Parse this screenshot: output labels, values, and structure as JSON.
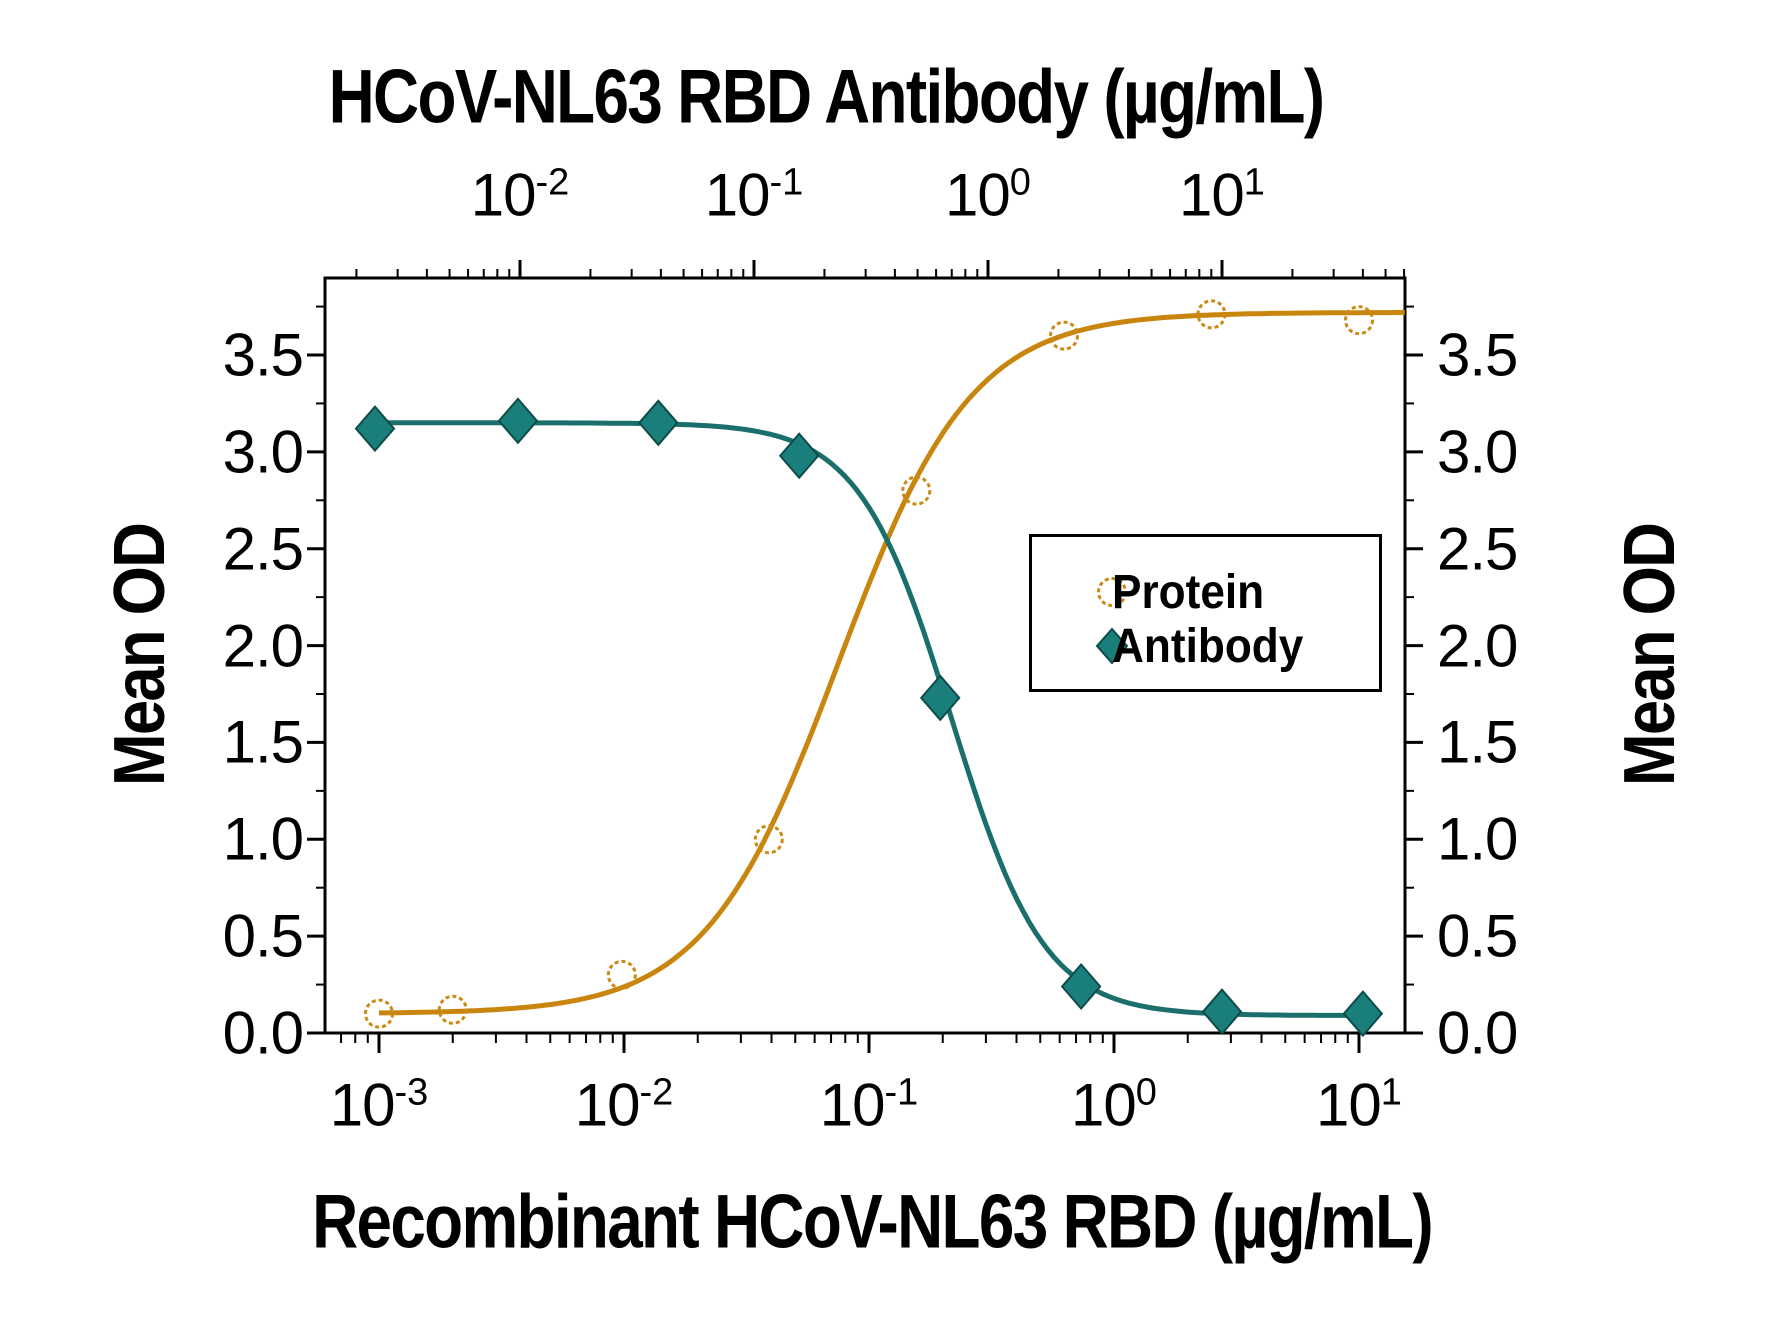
{
  "titles": {
    "top_axis": "HCoV-NL63 RBD Antibody (µg/mL)",
    "bottom_axis": "Recombinant HCoV-NL63 RBD (µg/mL)",
    "left_axis": "Mean OD",
    "right_axis": "Mean OD"
  },
  "legend": {
    "items": [
      {
        "label": "Protein",
        "marker": "open-circle-icon",
        "color": "#CC8A14"
      },
      {
        "label": "Antibody",
        "marker": "filled-diamond-icon",
        "color": "#1A7F7A"
      }
    ]
  },
  "axes": {
    "log_base_label": "10",
    "y_tick_labels": [
      "0.0",
      "0.5",
      "1.0",
      "1.5",
      "2.0",
      "2.5",
      "3.0",
      "3.5"
    ],
    "y_tick_values": [
      0,
      0.5,
      1.0,
      1.5,
      2.0,
      2.5,
      3.0,
      3.5
    ],
    "y_minor_step": 0.25,
    "bottom_major_exponents": [
      -3,
      -2,
      -1,
      0,
      1
    ],
    "top_major_exponents": [
      -2,
      -1,
      0,
      1
    ]
  },
  "chart_data": {
    "type": "line",
    "title": "",
    "top_xlabel": "HCoV-NL63 RBD Antibody (µg/mL)",
    "bottom_xlabel": "Recombinant HCoV-NL63 RBD (µg/mL)",
    "ylabel": "Mean OD",
    "ylim": [
      0,
      3.9
    ],
    "bottom_x_log_range": [
      -3.22,
      1.187
    ],
    "top_x_log_range": [
      -2.833,
      1.782
    ],
    "grid": false,
    "legend_position": "middle-right",
    "series": [
      {
        "name": "Protein",
        "x_axis": "bottom",
        "marker": "open-circle",
        "color": "#CC8A14",
        "x": [
          0.001,
          0.002,
          0.0098,
          0.039,
          0.156,
          0.625,
          2.5,
          10
        ],
        "y": [
          0.1,
          0.12,
          0.3,
          1.0,
          2.8,
          3.6,
          3.71,
          3.68
        ],
        "fit": {
          "bottom": 0.1,
          "top": 3.72,
          "ec50": 0.075,
          "hill": 1.6,
          "direction": "increasing",
          "draw_log_range": [
            -3.0,
            1.187
          ]
        }
      },
      {
        "name": "Antibody",
        "x_axis": "top",
        "marker": "filled-diamond",
        "color": "#1A7F7A",
        "x": [
          0.0024,
          0.0098,
          0.039,
          0.156,
          0.625,
          2.5,
          10,
          40
        ],
        "y": [
          3.12,
          3.16,
          3.15,
          2.98,
          1.73,
          0.24,
          0.11,
          0.1
        ],
        "fit": {
          "bottom": 0.09,
          "top": 3.15,
          "ec50": 0.7,
          "hill": 2.2,
          "direction": "decreasing",
          "draw_log_range": [
            -2.62,
            1.602
          ]
        }
      }
    ]
  },
  "colors": {
    "protein_line": "#C8860F",
    "protein_marker": "#CC8A14",
    "antibody_line": "#1A6F6D",
    "antibody_fill": "#1A7F7A",
    "antibody_stroke": "#0D4B49",
    "axis": "#000000",
    "background": "#FFFFFF"
  }
}
